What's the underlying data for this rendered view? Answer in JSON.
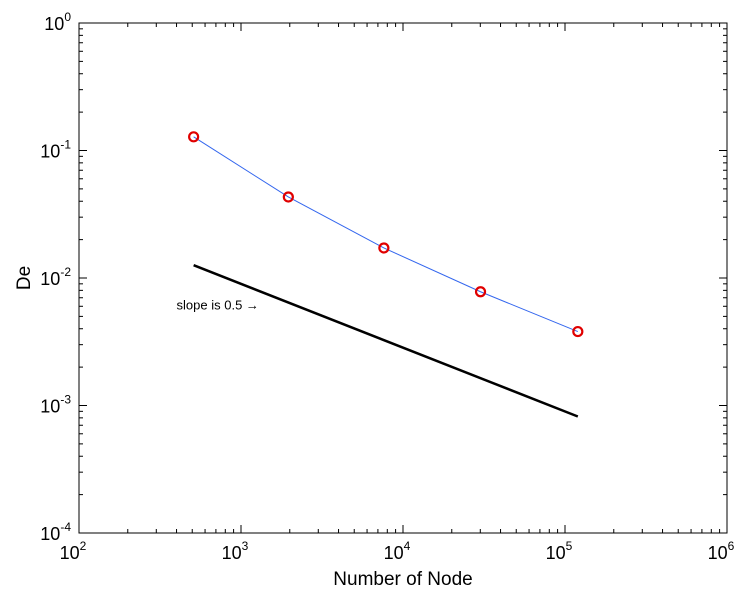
{
  "chart_data": {
    "type": "line",
    "xlabel": "Number of Node",
    "ylabel": "De",
    "x_scale": "log",
    "y_scale": "log",
    "xlim": [
      100,
      1000000
    ],
    "ylim": [
      0.0001,
      1
    ],
    "grid": false,
    "x_ticks": [
      {
        "base": "10",
        "exp": "2",
        "value": 100
      },
      {
        "base": "10",
        "exp": "3",
        "value": 1000
      },
      {
        "base": "10",
        "exp": "4",
        "value": 10000
      },
      {
        "base": "10",
        "exp": "5",
        "value": 100000
      },
      {
        "base": "10",
        "exp": "6",
        "value": 1000000
      }
    ],
    "y_ticks": [
      {
        "base": "10",
        "exp": "0",
        "value": 1
      },
      {
        "base": "10",
        "exp": "-1",
        "value": 0.1
      },
      {
        "base": "10",
        "exp": "-2",
        "value": 0.01
      },
      {
        "base": "10",
        "exp": "-3",
        "value": 0.001
      },
      {
        "base": "10",
        "exp": "-4",
        "value": 0.0001
      }
    ],
    "series": [
      {
        "color": "#3366ee",
        "marker": "circle",
        "marker_color": "#e00000",
        "x": [
          510,
          1960,
          7620,
          30100,
          120000
        ],
        "y": [
          0.128,
          0.0432,
          0.0172,
          0.0078,
          0.0038
        ]
      },
      {
        "color": "#000000",
        "x": [
          510,
          120000
        ],
        "y": [
          0.0126,
          0.00082
        ]
      }
    ],
    "annotations": [
      {
        "text": "slope is 0.5 →",
        "x": 400,
        "y": 0.0062
      }
    ]
  }
}
